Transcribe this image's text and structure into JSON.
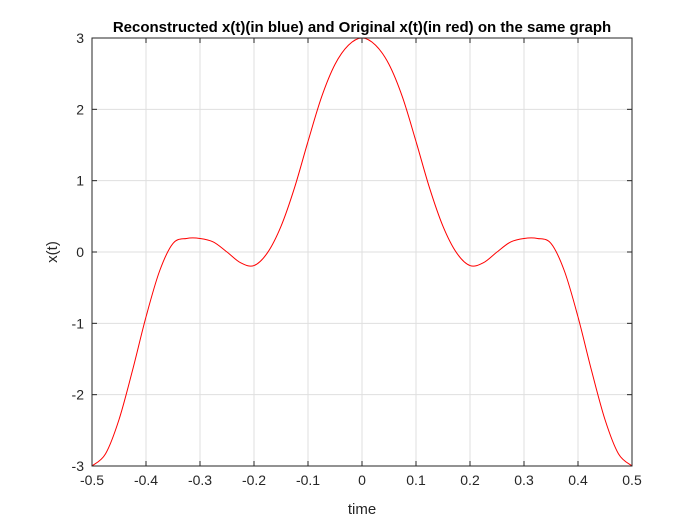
{
  "chart_data": {
    "type": "line",
    "title": "Reconstructed x(t)(in blue) and Original x(t)(in red) on the same graph",
    "xlabel": "time",
    "ylabel": "x(t)",
    "xlim": [
      -0.5,
      0.5
    ],
    "ylim": [
      -3,
      3
    ],
    "xticks": [
      "-0.5",
      "-0.4",
      "-0.3",
      "-0.2",
      "-0.1",
      "0",
      "0.1",
      "0.2",
      "0.3",
      "0.4",
      "0.5"
    ],
    "yticks": [
      "-3",
      "-2",
      "-1",
      "0",
      "1",
      "2",
      "3"
    ],
    "grid": true,
    "series": [
      {
        "color": "#ff0000",
        "x": [
          -0.5,
          -0.475,
          -0.45,
          -0.425,
          -0.4,
          -0.375,
          -0.35,
          -0.325,
          -0.3,
          -0.275,
          -0.25,
          -0.225,
          -0.2,
          -0.175,
          -0.15,
          -0.125,
          -0.1,
          -0.075,
          -0.05,
          -0.025,
          0,
          0.025,
          0.05,
          0.075,
          0.1,
          0.125,
          0.15,
          0.175,
          0.2,
          0.225,
          0.25,
          0.275,
          0.3,
          0.325,
          0.35,
          0.375,
          0.4,
          0.425,
          0.45,
          0.475,
          0.5
        ],
        "y": [
          -3.0,
          -2.83,
          -2.35,
          -1.66,
          -0.91,
          -0.27,
          0.12,
          0.19,
          0.19,
          0.14,
          0.0,
          -0.15,
          -0.19,
          -0.01,
          0.36,
          0.9,
          1.55,
          2.17,
          2.63,
          2.9,
          3.0,
          2.9,
          2.63,
          2.17,
          1.55,
          0.9,
          0.36,
          -0.01,
          -0.19,
          -0.15,
          0.0,
          0.14,
          0.19,
          0.19,
          0.12,
          -0.27,
          -0.91,
          -1.66,
          -2.35,
          -2.83,
          -3.0
        ]
      }
    ]
  }
}
